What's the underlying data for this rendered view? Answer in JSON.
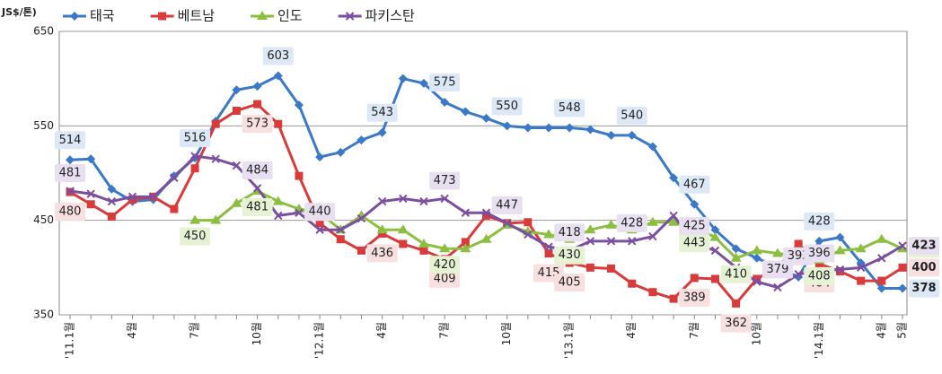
{
  "chart_data": {
    "type": "line",
    "y_label": "JS$/톤)",
    "categories": [
      "'11.1월",
      null,
      null,
      "4월",
      null,
      null,
      "7월",
      null,
      null,
      "10월",
      null,
      null,
      "'12.1월",
      null,
      null,
      "4월",
      null,
      null,
      "7월",
      null,
      null,
      "10월",
      null,
      null,
      "'13.1월",
      null,
      null,
      "4월",
      null,
      null,
      "7월",
      null,
      null,
      "10월",
      null,
      null,
      "'14.1월",
      null,
      null,
      "4월",
      "5월"
    ],
    "ylim": [
      350,
      650
    ],
    "yticks": [
      350,
      450,
      550,
      650
    ],
    "grid": true,
    "series": [
      {
        "name": "태국",
        "color": "#3a78c8",
        "marker": "diamond",
        "label_fill": "#dde8f6",
        "values": [
          514,
          515,
          483,
          470,
          472,
          497,
          516,
          555,
          588,
          592,
          603,
          572,
          517,
          522,
          535,
          543,
          600,
          595,
          575,
          565,
          558,
          550,
          548,
          548,
          548,
          546,
          540,
          540,
          528,
          495,
          467,
          440,
          420,
          410,
          400,
          390,
          428,
          432,
          405,
          378,
          378
        ],
        "value_labels": [
          "514",
          null,
          null,
          null,
          null,
          null,
          "516",
          null,
          null,
          null,
          "603",
          null,
          null,
          null,
          null,
          "543",
          null,
          null,
          "575",
          null,
          null,
          "550",
          null,
          null,
          "548",
          null,
          null,
          "540",
          null,
          null,
          "467",
          null,
          null,
          null,
          null,
          null,
          "428",
          null,
          null,
          null,
          "378"
        ]
      },
      {
        "name": "베트남",
        "color": "#d93a3a",
        "marker": "square",
        "label_fill": "#f8e0e0",
        "values": [
          480,
          467,
          454,
          472,
          475,
          462,
          505,
          552,
          566,
          573,
          552,
          497,
          447,
          430,
          418,
          436,
          425,
          418,
          409,
          427,
          455,
          447,
          448,
          415,
          405,
          400,
          399,
          383,
          374,
          367,
          389,
          388,
          362,
          388,
          400,
          425,
          404,
          396,
          386,
          386,
          400
        ],
        "value_labels": [
          "480",
          null,
          null,
          null,
          null,
          null,
          null,
          null,
          null,
          "573",
          null,
          null,
          null,
          null,
          null,
          "436",
          null,
          null,
          "409",
          null,
          null,
          null,
          null,
          "415",
          "405",
          null,
          null,
          null,
          null,
          null,
          "389",
          null,
          "362",
          null,
          null,
          null,
          "404",
          null,
          null,
          null,
          "400"
        ]
      },
      {
        "name": "인도",
        "color": "#8cbf3f",
        "marker": "triangle",
        "label_fill": "#e6f2d4",
        "values": [
          null,
          null,
          null,
          null,
          null,
          null,
          450,
          450,
          468,
          481,
          470,
          462,
          458,
          440,
          455,
          440,
          440,
          425,
          420,
          420,
          430,
          445,
          438,
          435,
          430,
          440,
          445,
          440,
          448,
          448,
          443,
          432,
          410,
          418,
          415,
          412,
          408,
          418,
          420,
          430,
          420
        ],
        "value_labels": [
          null,
          null,
          null,
          null,
          null,
          null,
          "450",
          null,
          null,
          "481",
          null,
          null,
          null,
          null,
          null,
          null,
          null,
          null,
          "420",
          null,
          null,
          null,
          null,
          null,
          "430",
          null,
          null,
          null,
          null,
          null,
          "443",
          null,
          "410",
          null,
          null,
          null,
          "408",
          null,
          null,
          null,
          "420"
        ]
      },
      {
        "name": "파키스탄",
        "color": "#7a4fa0",
        "marker": "x",
        "label_fill": "#e8e0f0",
        "values": [
          481,
          478,
          470,
          475,
          475,
          495,
          518,
          515,
          508,
          484,
          455,
          458,
          440,
          440,
          452,
          470,
          473,
          470,
          473,
          458,
          458,
          447,
          435,
          422,
          418,
          428,
          428,
          428,
          433,
          455,
          425,
          418,
          400,
          385,
          379,
          393,
          396,
          398,
          400,
          410,
          423
        ],
        "value_labels": [
          "481",
          null,
          null,
          null,
          null,
          null,
          null,
          null,
          null,
          "484",
          null,
          null,
          "440",
          null,
          null,
          null,
          null,
          null,
          "473",
          null,
          null,
          "447",
          null,
          null,
          "418",
          null,
          null,
          "428",
          null,
          null,
          "425",
          null,
          null,
          null,
          "379",
          "393",
          "396",
          null,
          null,
          null,
          "423"
        ]
      }
    ]
  }
}
